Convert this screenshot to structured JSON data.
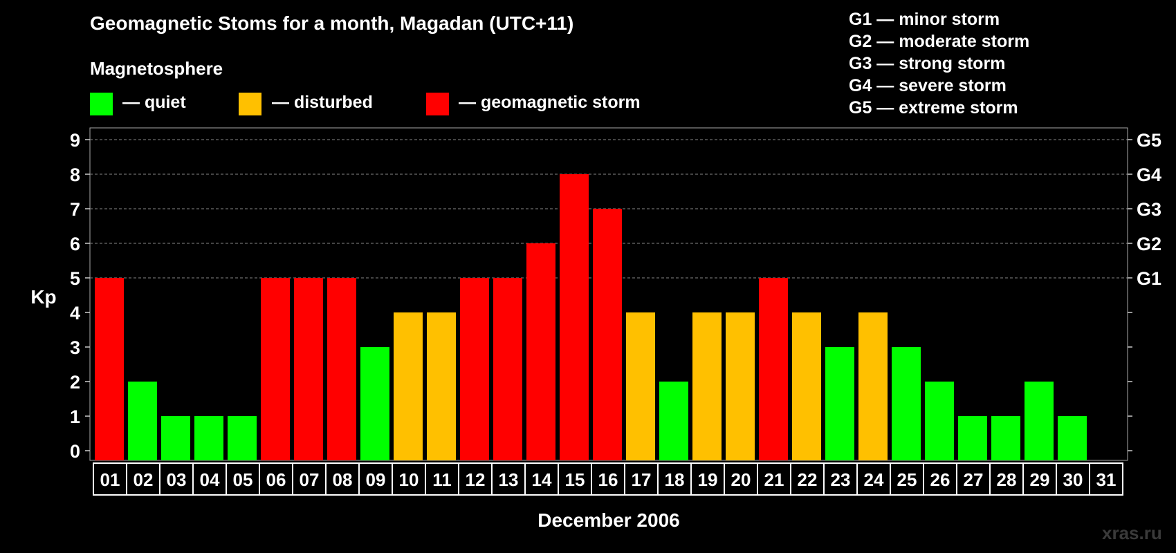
{
  "legend": {
    "heading": "Magnetosphere",
    "items": [
      {
        "label": "— quiet",
        "color": "#00ff00"
      },
      {
        "label": "— disturbed",
        "color": "#ffc000"
      },
      {
        "label": "— geomagnetic storm",
        "color": "#ff0000"
      }
    ],
    "g_scale": [
      "G1 — minor storm",
      "G2 — moderate storm",
      "G3 — strong storm",
      "G4 — severe storm",
      "G5 — extreme storm"
    ]
  },
  "watermark": "xras.ru",
  "chart_data": {
    "type": "bar",
    "title": "Geomagnetic Stoms for a month, Magadan (UTC+11)",
    "xlabel": "December 2006",
    "ylabel": "Kp",
    "ylim": [
      0,
      9
    ],
    "yticks": [
      0,
      1,
      2,
      3,
      4,
      5,
      6,
      7,
      8,
      9
    ],
    "right_axis_labels": [
      {
        "kp": 5,
        "label": "G1"
      },
      {
        "kp": 6,
        "label": "G2"
      },
      {
        "kp": 7,
        "label": "G3"
      },
      {
        "kp": 8,
        "label": "G4"
      },
      {
        "kp": 9,
        "label": "G5"
      }
    ],
    "categories": [
      "01",
      "02",
      "03",
      "04",
      "05",
      "06",
      "07",
      "08",
      "09",
      "10",
      "11",
      "12",
      "13",
      "14",
      "15",
      "16",
      "17",
      "18",
      "19",
      "20",
      "21",
      "22",
      "23",
      "24",
      "25",
      "26",
      "27",
      "28",
      "29",
      "30",
      "31"
    ],
    "values": [
      5,
      2,
      1,
      1,
      1,
      5,
      5,
      5,
      3,
      4,
      4,
      5,
      5,
      6,
      8,
      7,
      4,
      2,
      4,
      4,
      5,
      4,
      3,
      4,
      3,
      2,
      1,
      1,
      2,
      1,
      null
    ],
    "colors": {
      "quiet": "#00ff00",
      "disturbed": "#ffc000",
      "storm": "#ff0000"
    },
    "grid": true
  }
}
